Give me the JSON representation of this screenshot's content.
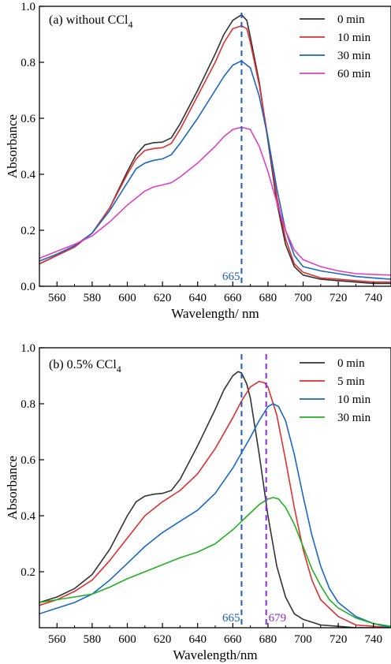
{
  "chart_data": [
    {
      "type": "line",
      "title": "(a) without CCl",
      "title_sub": "4",
      "xlabel": "Wavelength/ nm",
      "ylabel": "Absorbance",
      "xlim": [
        550,
        750
      ],
      "ylim": [
        0.0,
        1.0
      ],
      "xticks": [
        560,
        580,
        600,
        620,
        640,
        660,
        680,
        700,
        720,
        740
      ],
      "yticks": [
        0.0,
        0.2,
        0.4,
        0.6,
        0.8,
        1.0
      ],
      "ytick_labels": [
        "0.0",
        "0.2",
        "0.4",
        "0.6",
        "0.8",
        "1.0"
      ],
      "grid": false,
      "legend_position": "top-right",
      "markers": [
        {
          "x": 665,
          "label": "665",
          "color": "#1f5fbf"
        }
      ],
      "series": [
        {
          "name": "0 min",
          "color": "#333333",
          "points": [
            [
              550,
              0.08
            ],
            [
              560,
              0.11
            ],
            [
              570,
              0.14
            ],
            [
              580,
              0.19
            ],
            [
              590,
              0.28
            ],
            [
              600,
              0.41
            ],
            [
              605,
              0.47
            ],
            [
              610,
              0.505
            ],
            [
              615,
              0.513
            ],
            [
              620,
              0.515
            ],
            [
              625,
              0.53
            ],
            [
              630,
              0.58
            ],
            [
              640,
              0.7
            ],
            [
              650,
              0.83
            ],
            [
              655,
              0.9
            ],
            [
              660,
              0.95
            ],
            [
              665,
              0.97
            ],
            [
              668,
              0.95
            ],
            [
              670,
              0.89
            ],
            [
              675,
              0.73
            ],
            [
              680,
              0.52
            ],
            [
              685,
              0.3
            ],
            [
              690,
              0.15
            ],
            [
              695,
              0.07
            ],
            [
              700,
              0.04
            ],
            [
              710,
              0.025
            ],
            [
              720,
              0.02
            ],
            [
              730,
              0.015
            ],
            [
              740,
              0.01
            ],
            [
              750,
              0.01
            ]
          ]
        },
        {
          "name": "10 min",
          "color": "#e03030",
          "points": [
            [
              550,
              0.08
            ],
            [
              560,
              0.11
            ],
            [
              570,
              0.14
            ],
            [
              580,
              0.19
            ],
            [
              590,
              0.28
            ],
            [
              600,
              0.4
            ],
            [
              605,
              0.455
            ],
            [
              610,
              0.485
            ],
            [
              615,
              0.492
            ],
            [
              620,
              0.495
            ],
            [
              625,
              0.51
            ],
            [
              630,
              0.56
            ],
            [
              640,
              0.68
            ],
            [
              650,
              0.8
            ],
            [
              655,
              0.87
            ],
            [
              660,
              0.92
            ],
            [
              665,
              0.93
            ],
            [
              668,
              0.92
            ],
            [
              670,
              0.87
            ],
            [
              675,
              0.72
            ],
            [
              680,
              0.53
            ],
            [
              685,
              0.32
            ],
            [
              690,
              0.17
            ],
            [
              695,
              0.08
            ],
            [
              700,
              0.05
            ],
            [
              710,
              0.03
            ],
            [
              720,
              0.025
            ],
            [
              730,
              0.02
            ],
            [
              740,
              0.015
            ],
            [
              750,
              0.015
            ]
          ]
        },
        {
          "name": "30 min",
          "color": "#1a66cc",
          "points": [
            [
              550,
              0.09
            ],
            [
              560,
              0.115
            ],
            [
              570,
              0.145
            ],
            [
              580,
              0.19
            ],
            [
              590,
              0.27
            ],
            [
              600,
              0.37
            ],
            [
              605,
              0.42
            ],
            [
              610,
              0.44
            ],
            [
              615,
              0.45
            ],
            [
              620,
              0.455
            ],
            [
              625,
              0.47
            ],
            [
              630,
              0.51
            ],
            [
              640,
              0.6
            ],
            [
              650,
              0.7
            ],
            [
              655,
              0.75
            ],
            [
              660,
              0.79
            ],
            [
              665,
              0.805
            ],
            [
              670,
              0.78
            ],
            [
              675,
              0.68
            ],
            [
              680,
              0.53
            ],
            [
              685,
              0.35
            ],
            [
              690,
              0.2
            ],
            [
              695,
              0.11
            ],
            [
              700,
              0.07
            ],
            [
              710,
              0.055
            ],
            [
              720,
              0.045
            ],
            [
              730,
              0.035
            ],
            [
              740,
              0.03
            ],
            [
              750,
              0.025
            ]
          ]
        },
        {
          "name": "60 min",
          "color": "#e040c0",
          "points": [
            [
              550,
              0.1
            ],
            [
              560,
              0.125
            ],
            [
              570,
              0.15
            ],
            [
              580,
              0.18
            ],
            [
              590,
              0.23
            ],
            [
              600,
              0.29
            ],
            [
              610,
              0.34
            ],
            [
              615,
              0.355
            ],
            [
              620,
              0.362
            ],
            [
              625,
              0.37
            ],
            [
              630,
              0.39
            ],
            [
              640,
              0.44
            ],
            [
              650,
              0.5
            ],
            [
              655,
              0.535
            ],
            [
              660,
              0.56
            ],
            [
              665,
              0.568
            ],
            [
              670,
              0.56
            ],
            [
              675,
              0.5
            ],
            [
              680,
              0.41
            ],
            [
              685,
              0.3
            ],
            [
              690,
              0.2
            ],
            [
              695,
              0.13
            ],
            [
              700,
              0.095
            ],
            [
              710,
              0.07
            ],
            [
              720,
              0.055
            ],
            [
              730,
              0.045
            ],
            [
              740,
              0.042
            ],
            [
              750,
              0.04
            ]
          ]
        }
      ]
    },
    {
      "type": "line",
      "title": "(b) 0.5% CCl",
      "title_sub": "4",
      "xlabel": "Wavelength/nm",
      "ylabel": "Absorbance",
      "xlim": [
        550,
        750
      ],
      "ylim": [
        0.0,
        1.0
      ],
      "xticks": [
        560,
        580,
        600,
        620,
        640,
        660,
        680,
        700,
        720,
        740
      ],
      "yticks": [
        0.2,
        0.4,
        0.6,
        0.8,
        1.0
      ],
      "ytick_labels": [
        "0.2",
        "0.4",
        "0.6",
        "0.8",
        "1.0"
      ],
      "grid": false,
      "legend_position": "top-right",
      "markers": [
        {
          "x": 665,
          "label": "665",
          "color": "#1f5fbf"
        },
        {
          "x": 679,
          "label": "679",
          "color": "#8a2be2"
        }
      ],
      "series": [
        {
          "name": "0 min",
          "color": "#333333",
          "points": [
            [
              550,
              0.09
            ],
            [
              560,
              0.11
            ],
            [
              570,
              0.14
            ],
            [
              580,
              0.19
            ],
            [
              590,
              0.28
            ],
            [
              600,
              0.4
            ],
            [
              605,
              0.45
            ],
            [
              610,
              0.47
            ],
            [
              615,
              0.477
            ],
            [
              620,
              0.48
            ],
            [
              625,
              0.49
            ],
            [
              630,
              0.53
            ],
            [
              640,
              0.65
            ],
            [
              650,
              0.78
            ],
            [
              655,
              0.85
            ],
            [
              660,
              0.9
            ],
            [
              663,
              0.915
            ],
            [
              665,
              0.91
            ],
            [
              668,
              0.87
            ],
            [
              670,
              0.82
            ],
            [
              675,
              0.62
            ],
            [
              680,
              0.4
            ],
            [
              685,
              0.22
            ],
            [
              690,
              0.11
            ],
            [
              695,
              0.05
            ],
            [
              700,
              0.03
            ],
            [
              710,
              0.01
            ],
            [
              720,
              0.005
            ],
            [
              730,
              0.0
            ],
            [
              740,
              0.0
            ],
            [
              750,
              0.0
            ]
          ]
        },
        {
          "name": "5 min",
          "color": "#e03030",
          "points": [
            [
              550,
              0.08
            ],
            [
              560,
              0.1
            ],
            [
              570,
              0.13
            ],
            [
              580,
              0.17
            ],
            [
              590,
              0.24
            ],
            [
              600,
              0.32
            ],
            [
              610,
              0.4
            ],
            [
              620,
              0.45
            ],
            [
              630,
              0.49
            ],
            [
              640,
              0.55
            ],
            [
              650,
              0.64
            ],
            [
              660,
              0.75
            ],
            [
              665,
              0.81
            ],
            [
              670,
              0.86
            ],
            [
              675,
              0.88
            ],
            [
              678,
              0.875
            ],
            [
              680,
              0.86
            ],
            [
              685,
              0.76
            ],
            [
              690,
              0.6
            ],
            [
              695,
              0.43
            ],
            [
              700,
              0.28
            ],
            [
              705,
              0.17
            ],
            [
              710,
              0.1
            ],
            [
              720,
              0.04
            ],
            [
              730,
              0.01
            ],
            [
              740,
              0.005
            ],
            [
              750,
              0.0
            ]
          ]
        },
        {
          "name": "10 min",
          "color": "#1a66cc",
          "points": [
            [
              550,
              0.05
            ],
            [
              560,
              0.07
            ],
            [
              570,
              0.09
            ],
            [
              580,
              0.12
            ],
            [
              590,
              0.17
            ],
            [
              600,
              0.23
            ],
            [
              610,
              0.29
            ],
            [
              620,
              0.34
            ],
            [
              630,
              0.38
            ],
            [
              640,
              0.42
            ],
            [
              650,
              0.48
            ],
            [
              660,
              0.57
            ],
            [
              670,
              0.68
            ],
            [
              675,
              0.74
            ],
            [
              680,
              0.79
            ],
            [
              683,
              0.8
            ],
            [
              686,
              0.79
            ],
            [
              690,
              0.74
            ],
            [
              695,
              0.62
            ],
            [
              700,
              0.47
            ],
            [
              705,
              0.33
            ],
            [
              710,
              0.22
            ],
            [
              715,
              0.14
            ],
            [
              720,
              0.09
            ],
            [
              730,
              0.04
            ],
            [
              740,
              0.015
            ],
            [
              750,
              0.0
            ]
          ]
        },
        {
          "name": "30 min",
          "color": "#22b122",
          "points": [
            [
              550,
              0.09
            ],
            [
              560,
              0.1
            ],
            [
              570,
              0.11
            ],
            [
              580,
              0.12
            ],
            [
              590,
              0.145
            ],
            [
              600,
              0.175
            ],
            [
              610,
              0.2
            ],
            [
              620,
              0.225
            ],
            [
              630,
              0.25
            ],
            [
              640,
              0.27
            ],
            [
              650,
              0.3
            ],
            [
              660,
              0.35
            ],
            [
              670,
              0.41
            ],
            [
              675,
              0.44
            ],
            [
              680,
              0.46
            ],
            [
              683,
              0.465
            ],
            [
              686,
              0.46
            ],
            [
              690,
              0.43
            ],
            [
              695,
              0.37
            ],
            [
              700,
              0.29
            ],
            [
              705,
              0.21
            ],
            [
              710,
              0.15
            ],
            [
              715,
              0.1
            ],
            [
              720,
              0.07
            ],
            [
              730,
              0.035
            ],
            [
              740,
              0.015
            ],
            [
              750,
              0.005
            ]
          ]
        }
      ]
    }
  ]
}
